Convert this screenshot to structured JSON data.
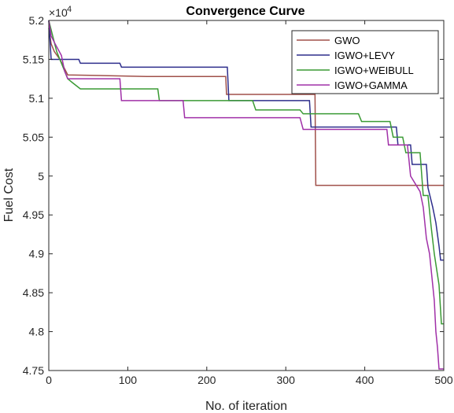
{
  "chart_data": {
    "type": "line",
    "title": "Convergence Curve",
    "xlabel": "No. of iteration",
    "ylabel": "Fuel Cost",
    "y_exponent_base": "×10",
    "y_exponent_power": "4",
    "xlim": [
      0,
      500
    ],
    "ylim": [
      4.75,
      5.2
    ],
    "x_ticks": [
      0,
      100,
      200,
      300,
      400,
      500
    ],
    "x_tick_labels": [
      "0",
      "100",
      "200",
      "300",
      "400",
      "500"
    ],
    "y_ticks": [
      4.75,
      4.8,
      4.85,
      4.9,
      4.95,
      5.0,
      5.05,
      5.1,
      5.15,
      5.2
    ],
    "y_tick_labels": [
      "4.75",
      "4.8",
      "4.85",
      "4.9",
      "4.95",
      "5",
      "5.05",
      "5.1",
      "5.15",
      "5.2"
    ],
    "legend_position": "top-right",
    "series": [
      {
        "name": "GWO",
        "color": "#a0504a",
        "points": [
          [
            0,
            5.19
          ],
          [
            3,
            5.17
          ],
          [
            7,
            5.16
          ],
          [
            14,
            5.15
          ],
          [
            24,
            5.13
          ],
          [
            124,
            5.128
          ],
          [
            224,
            5.128
          ],
          [
            225,
            5.105
          ],
          [
            320,
            5.105
          ],
          [
            337,
            5.105
          ],
          [
            338,
            4.988
          ],
          [
            500,
            4.988
          ]
        ]
      },
      {
        "name": "IGWO+LEVY",
        "color": "#2e2e8c",
        "points": [
          [
            0,
            5.2
          ],
          [
            3,
            5.15
          ],
          [
            38,
            5.15
          ],
          [
            40,
            5.145
          ],
          [
            90,
            5.145
          ],
          [
            92,
            5.14
          ],
          [
            226,
            5.14
          ],
          [
            228,
            5.097
          ],
          [
            330,
            5.097
          ],
          [
            332,
            5.063
          ],
          [
            440,
            5.063
          ],
          [
            442,
            5.04
          ],
          [
            458,
            5.04
          ],
          [
            460,
            5.015
          ],
          [
            478,
            5.015
          ],
          [
            480,
            4.985
          ],
          [
            486,
            4.96
          ],
          [
            490,
            4.94
          ],
          [
            494,
            4.91
          ],
          [
            496,
            4.892
          ],
          [
            500,
            4.892
          ]
        ]
      },
      {
        "name": "IGWO+WEIBULL",
        "color": "#3a9a34",
        "points": [
          [
            0,
            5.2
          ],
          [
            5,
            5.18
          ],
          [
            10,
            5.16
          ],
          [
            20,
            5.135
          ],
          [
            24,
            5.125
          ],
          [
            30,
            5.12
          ],
          [
            40,
            5.112
          ],
          [
            138,
            5.112
          ],
          [
            140,
            5.097
          ],
          [
            258,
            5.097
          ],
          [
            262,
            5.085
          ],
          [
            318,
            5.085
          ],
          [
            322,
            5.08
          ],
          [
            392,
            5.08
          ],
          [
            396,
            5.07
          ],
          [
            432,
            5.07
          ],
          [
            436,
            5.05
          ],
          [
            448,
            5.05
          ],
          [
            452,
            5.03
          ],
          [
            470,
            5.03
          ],
          [
            474,
            4.975
          ],
          [
            480,
            4.975
          ],
          [
            484,
            4.935
          ],
          [
            488,
            4.9
          ],
          [
            494,
            4.86
          ],
          [
            497,
            4.81
          ],
          [
            500,
            4.81
          ]
        ]
      },
      {
        "name": "IGWO+GAMMA",
        "color": "#a030a8",
        "points": [
          [
            0,
            5.2
          ],
          [
            3,
            5.18
          ],
          [
            8,
            5.17
          ],
          [
            16,
            5.155
          ],
          [
            20,
            5.135
          ],
          [
            24,
            5.125
          ],
          [
            90,
            5.125
          ],
          [
            92,
            5.097
          ],
          [
            170,
            5.097
          ],
          [
            172,
            5.075
          ],
          [
            318,
            5.075
          ],
          [
            322,
            5.06
          ],
          [
            428,
            5.06
          ],
          [
            430,
            5.04
          ],
          [
            454,
            5.04
          ],
          [
            458,
            5.0
          ],
          [
            470,
            4.98
          ],
          [
            474,
            4.96
          ],
          [
            478,
            4.92
          ],
          [
            482,
            4.9
          ],
          [
            488,
            4.84
          ],
          [
            490,
            4.8
          ],
          [
            492,
            4.78
          ],
          [
            494,
            4.752
          ],
          [
            500,
            4.752
          ]
        ]
      }
    ]
  }
}
